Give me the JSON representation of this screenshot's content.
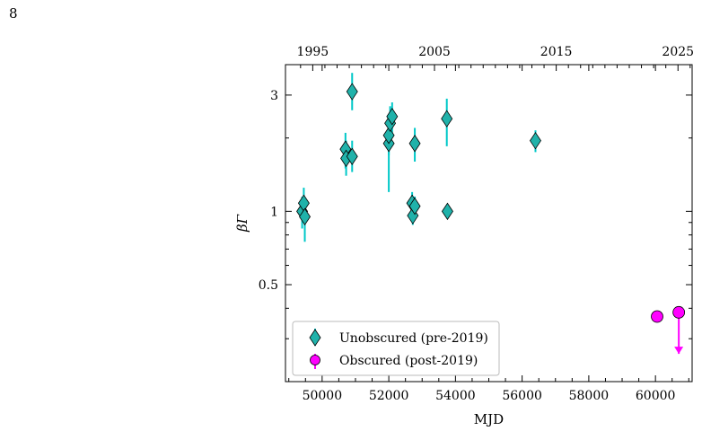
{
  "page_number": "8",
  "chart_data": {
    "type": "scatter",
    "xlabel": "MJD",
    "ylabel": "βΓ",
    "x_axis": {
      "range": [
        48900,
        61100
      ],
      "ticks": [
        50000,
        52000,
        54000,
        56000,
        58000,
        60000
      ],
      "tick_labels": [
        "50000",
        "52000",
        "54000",
        "56000",
        "58000",
        "60000"
      ]
    },
    "top_axis": {
      "tick_values": [
        1995,
        2005,
        2015,
        2025
      ],
      "tick_mjd": [
        49718,
        53371,
        57023,
        60676
      ],
      "tick_labels": [
        "1995",
        "2005",
        "2015",
        "2025"
      ]
    },
    "y_axis": {
      "scale": "log",
      "range": [
        0.2,
        4.0
      ],
      "ticks": [
        0.5,
        1,
        3
      ],
      "tick_labels": [
        "0.5",
        "1",
        "3"
      ]
    },
    "legend": {
      "position": "lower-left"
    },
    "series": [
      {
        "name": "Unobscured (pre-2019)",
        "marker": "diamond",
        "color": "#20b2aa",
        "error_color": "#00c8c8",
        "points": [
          {
            "x": 49400,
            "y": 1.0,
            "ylo": 0.85,
            "yhi": 1.15
          },
          {
            "x": 49450,
            "y": 1.08,
            "ylo": 0.95,
            "yhi": 1.25
          },
          {
            "x": 49480,
            "y": 0.95,
            "ylo": 0.75,
            "yhi": 1.1
          },
          {
            "x": 50700,
            "y": 1.8,
            "ylo": 1.5,
            "yhi": 2.1
          },
          {
            "x": 50720,
            "y": 1.65,
            "ylo": 1.4,
            "yhi": 1.95
          },
          {
            "x": 50900,
            "y": 1.68,
            "ylo": 1.45,
            "yhi": 1.95
          },
          {
            "x": 50900,
            "y": 3.1,
            "ylo": 2.6,
            "yhi": 3.7
          },
          {
            "x": 52000,
            "y": 1.9,
            "ylo": 1.2,
            "yhi": 2.5
          },
          {
            "x": 52000,
            "y": 2.05,
            "ylo": 1.7,
            "yhi": 2.4
          },
          {
            "x": 52040,
            "y": 2.3,
            "ylo": 1.9,
            "yhi": 2.7
          },
          {
            "x": 52100,
            "y": 2.45,
            "ylo": 2.1,
            "yhi": 2.8
          },
          {
            "x": 52700,
            "y": 1.08,
            "ylo": 0.95,
            "yhi": 1.2
          },
          {
            "x": 52720,
            "y": 0.96,
            "ylo": 0.88,
            "yhi": 1.05
          },
          {
            "x": 52780,
            "y": 1.05,
            "ylo": 0.95,
            "yhi": 1.15
          },
          {
            "x": 52780,
            "y": 1.9,
            "ylo": 1.6,
            "yhi": 2.2
          },
          {
            "x": 53740,
            "y": 2.4,
            "ylo": 1.85,
            "yhi": 2.9
          },
          {
            "x": 53760,
            "y": 1.0,
            "ylo": 0.95,
            "yhi": 1.06
          },
          {
            "x": 56400,
            "y": 1.95,
            "ylo": 1.75,
            "yhi": 2.15
          }
        ]
      },
      {
        "name": "Obscured (post-2019)",
        "marker": "circle",
        "color": "#ff00ff",
        "points": [
          {
            "x": 60050,
            "y": 0.37
          },
          {
            "x": 60700,
            "y": 0.385,
            "upper_limit": true,
            "arrow_to": 0.26
          }
        ]
      }
    ]
  }
}
